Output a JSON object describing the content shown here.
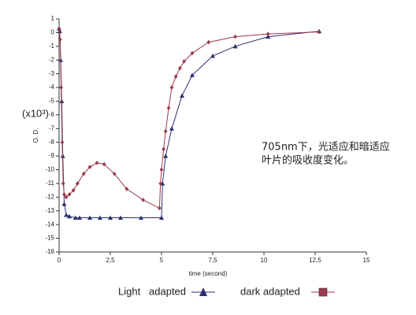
{
  "chart_data": {
    "type": "line",
    "x_label": "time (second)",
    "y_label": "O. D.",
    "y_multiplier": "(x10³)",
    "annotation": [
      "705nm下，光适应和暗适应",
      "叶片的吸收度变化。"
    ],
    "xlim": [
      0,
      15
    ],
    "ylim": [
      -16,
      1
    ],
    "xticks": [
      0,
      {
        "value": 2.5,
        "label": "2,5"
      },
      5,
      {
        "value": 7.5,
        "label": "7,5"
      },
      10,
      {
        "value": 12.5,
        "label": "12,5"
      },
      15
    ],
    "yticks": [
      1,
      0,
      -1,
      -2,
      -3,
      -4,
      -5,
      -6,
      -7,
      -8,
      -9,
      -10,
      -11,
      -12,
      -13,
      -14,
      -15,
      -16
    ],
    "grid": false,
    "series": [
      {
        "name": "Light   adapted",
        "color": "#2c2f6e",
        "marker": "triangle",
        "x": [
          0,
          0.03,
          0.08,
          0.13,
          0.18,
          0.25,
          0.35,
          0.5,
          0.8,
          1.0,
          1.5,
          2.0,
          2.5,
          3.0,
          4.0,
          5.0,
          5.05,
          5.2,
          5.5,
          6.0,
          6.5,
          7.5,
          8.6,
          10.2,
          12.7
        ],
        "values": [
          0.3,
          0.1,
          -2,
          -5,
          -9,
          -12.5,
          -13.3,
          -13.4,
          -13.5,
          -13.5,
          -13.5,
          -13.5,
          -13.5,
          -13.5,
          -13.5,
          -13.5,
          -11,
          -9,
          -7,
          -4.6,
          -3.1,
          -1.7,
          -1,
          -0.3,
          0.1
        ]
      },
      {
        "name": "dark adapted",
        "color": "#9b3a4c",
        "marker": "diamond",
        "x": [
          0,
          0.05,
          0.1,
          0.15,
          0.2,
          0.25,
          0.35,
          0.5,
          0.7,
          0.9,
          1.2,
          1.5,
          1.85,
          2.2,
          2.7,
          3.3,
          4.1,
          4.9,
          4.95,
          5.0,
          5.1,
          5.2,
          5.35,
          5.5,
          5.7,
          5.9,
          6.1,
          6.5,
          7.3,
          8.6,
          10.2,
          12.7
        ],
        "values": [
          0.3,
          -0.5,
          -4,
          -8,
          -11,
          -11.8,
          -12,
          -11.8,
          -11.5,
          -11,
          -10.3,
          -9.8,
          -9.5,
          -9.6,
          -10.3,
          -11.4,
          -12.2,
          -12.8,
          -11,
          -10,
          -8.5,
          -7.2,
          -5.5,
          -4,
          -3.2,
          -2.6,
          -2.1,
          -1.5,
          -0.7,
          -0.3,
          -0.1,
          0.05
        ]
      }
    ]
  }
}
